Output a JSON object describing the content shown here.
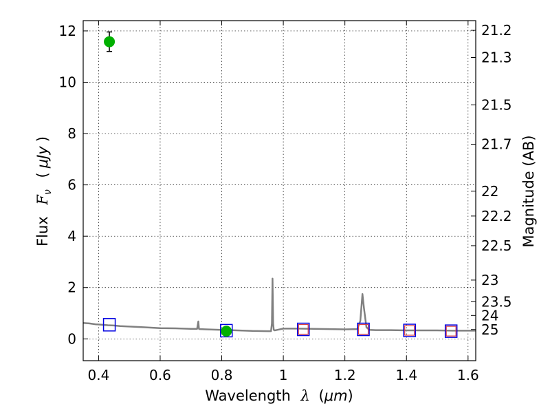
{
  "chart_data": {
    "type": "line",
    "xlabel_text": "Wavelength",
    "xlabel_sym": "λ",
    "xlabel_unit": "μm",
    "ylabel_text": "Flux",
    "ylabel_sym": "F",
    "ylabel_sub": "ν",
    "ylabel_unit": "μJy",
    "y2label": "Magnitude (AB)",
    "xlim": [
      0.35,
      1.625
    ],
    "ylim": [
      -0.85,
      12.4
    ],
    "x_ticks": [
      0.4,
      0.6,
      0.8,
      1.0,
      1.2,
      1.4,
      1.6
    ],
    "x_tick_labels": [
      "0.4",
      "0.6",
      "0.8",
      "1",
      "1.2",
      "1.4",
      "1.6"
    ],
    "y_ticks": [
      0,
      2,
      4,
      6,
      8,
      10,
      12
    ],
    "y_tick_labels": [
      "0",
      "2",
      "4",
      "6",
      "8",
      "10",
      "12"
    ],
    "mag_ticks": [
      21.2,
      21.3,
      21.5,
      21.7,
      22,
      22.2,
      22.5,
      23,
      23.5,
      24,
      25
    ],
    "mag_tick_labels": [
      "21.2",
      "21.3",
      "21.5",
      "21.7",
      "22",
      "22.2",
      "22.5",
      "23",
      "23.5",
      "24",
      "25"
    ],
    "grid": true,
    "series": [
      {
        "name": "model spectrum",
        "color": "#808080",
        "x": [
          0.35,
          0.37,
          0.39,
          0.4,
          0.41,
          0.43,
          0.45,
          0.47,
          0.5,
          0.55,
          0.6,
          0.65,
          0.7,
          0.72,
          0.724,
          0.726,
          0.728,
          0.73,
          0.75,
          0.8,
          0.85,
          0.9,
          0.95,
          0.96,
          0.963,
          0.965,
          0.967,
          0.969,
          0.972,
          0.98,
          1.0,
          1.05,
          1.1,
          1.15,
          1.2,
          1.24,
          1.25,
          1.257,
          1.262,
          1.27,
          1.28,
          1.3,
          1.35,
          1.4,
          1.45,
          1.5,
          1.55,
          1.6,
          1.625
        ],
        "y": [
          0.62,
          0.6,
          0.57,
          0.56,
          0.55,
          0.53,
          0.52,
          0.5,
          0.48,
          0.45,
          0.42,
          0.41,
          0.39,
          0.39,
          0.68,
          0.39,
          0.38,
          0.38,
          0.37,
          0.35,
          0.33,
          0.31,
          0.3,
          0.3,
          0.6,
          2.35,
          0.6,
          0.35,
          0.33,
          0.35,
          0.4,
          0.4,
          0.39,
          0.38,
          0.37,
          0.38,
          0.7,
          1.75,
          1.2,
          0.45,
          0.35,
          0.34,
          0.34,
          0.33,
          0.33,
          0.33,
          0.32,
          0.32,
          0.32
        ]
      }
    ],
    "photometry": [
      {
        "x": 0.435,
        "y": 11.58,
        "yerr": 0.38,
        "color": "#00b000"
      },
      {
        "x": 0.815,
        "y": 0.3,
        "yerr": 0.05,
        "color": "#00b000"
      }
    ],
    "model_points": [
      {
        "x": 0.435,
        "y": 0.55
      },
      {
        "x": 0.815,
        "y": 0.32
      },
      {
        "x": 1.065,
        "y": 0.37
      },
      {
        "x": 1.26,
        "y": 0.37
      },
      {
        "x": 1.41,
        "y": 0.33
      },
      {
        "x": 1.545,
        "y": 0.3
      }
    ],
    "observed_limits": [
      {
        "x": 1.065,
        "y": 0.37
      },
      {
        "x": 1.26,
        "y": 0.37
      },
      {
        "x": 1.41,
        "y": 0.33
      },
      {
        "x": 1.545,
        "y": 0.3
      }
    ],
    "colors": {
      "model_box": "#0000e0",
      "limit_box": "#e04040"
    }
  }
}
